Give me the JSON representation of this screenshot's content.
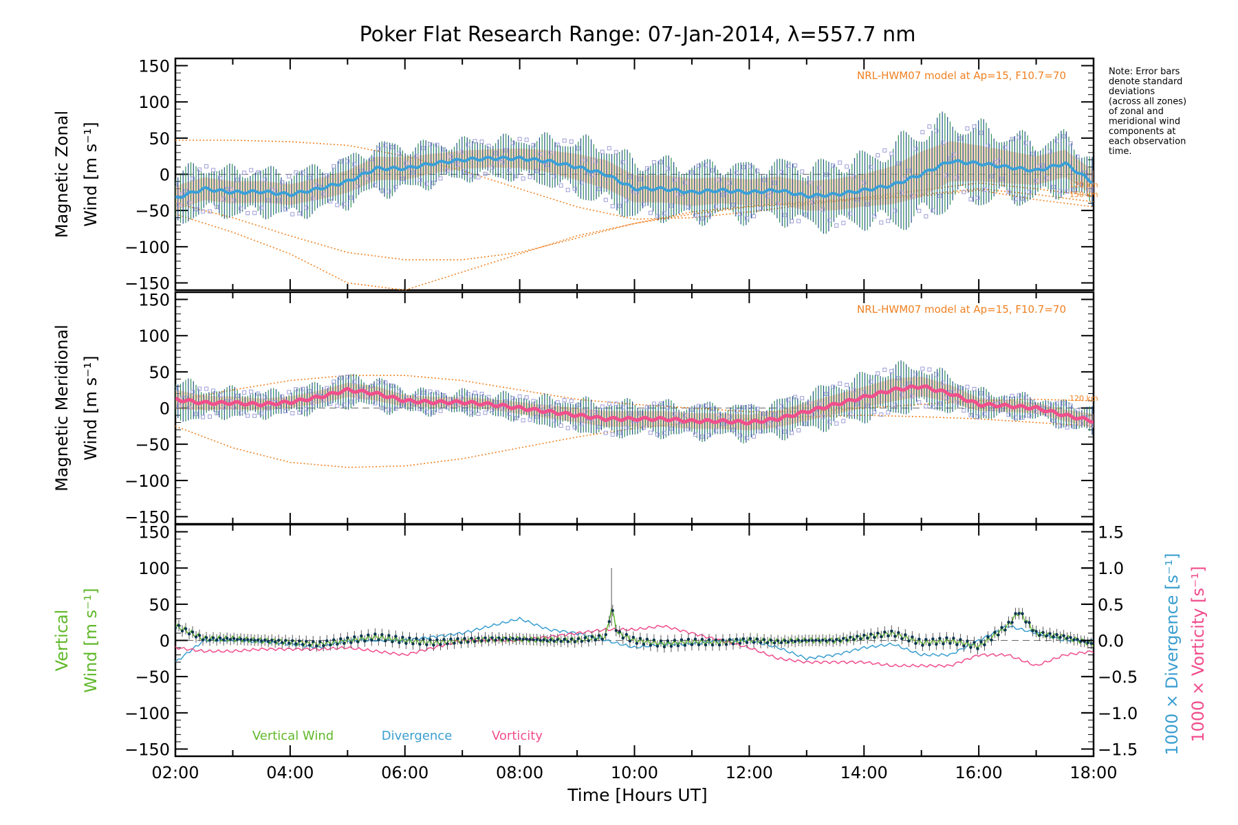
{
  "chart_data": {
    "type": "line",
    "title": "Poker Flat Research Range: 07-Jan-2014, λ=557.7 nm",
    "xlabel": "Time [Hours UT]",
    "x_ticks": [
      "02:00",
      "04:00",
      "06:00",
      "08:00",
      "10:00",
      "12:00",
      "14:00",
      "16:00",
      "18:00"
    ],
    "xlim": [
      2,
      18
    ],
    "note": [
      "Note: Error bars",
      "denote standard",
      "deviations",
      "(across all zones)",
      "of zonal and",
      "meridional wind",
      "components at",
      "each observation",
      "time."
    ],
    "colors": {
      "zonal": "#3aa0d8",
      "meridional": "#f0508c",
      "vertical": "#60b82a",
      "divergence": "#3a9ed0",
      "vorticity": "#f04c8c",
      "model": "#f08020",
      "scatter": "#9b9bd8",
      "errbar_green": "#2e8f55",
      "errbar_blue": "#1f4f8a",
      "fill": "#f7b58e"
    },
    "panels": [
      {
        "id": "zonal",
        "ylabel_line1": "Magnetic Zonal",
        "ylabel_line2": "Wind [m s⁻¹]",
        "ylim": [
          -160,
          160
        ],
        "y_ticks": [
          "150",
          "100",
          "50",
          "0",
          "−50",
          "−100",
          "−150"
        ],
        "model_label": "NRL-HWM07 model at Ap=15, F10.7=70",
        "model_alt_labels": [
          "120 km",
          "150 km"
        ],
        "series_name": "Zonal",
        "x": [
          2.0,
          2.5,
          3.0,
          3.5,
          4.0,
          4.5,
          5.0,
          5.5,
          6.0,
          6.5,
          7.0,
          7.5,
          8.0,
          8.5,
          9.0,
          9.5,
          10.0,
          10.5,
          11.0,
          11.5,
          12.0,
          12.5,
          13.0,
          13.5,
          14.0,
          14.5,
          15.0,
          15.5,
          16.0,
          16.5,
          17.0,
          17.5,
          18.0
        ],
        "values": [
          -33,
          -20,
          -25,
          -24,
          -28,
          -20,
          -10,
          8,
          8,
          15,
          20,
          22,
          22,
          18,
          10,
          0,
          -20,
          -20,
          -25,
          -22,
          -25,
          -22,
          -30,
          -28,
          -22,
          -15,
          0,
          18,
          15,
          10,
          5,
          15,
          -12
        ],
        "spread": [
          38,
          35,
          34,
          33,
          32,
          33,
          34,
          36,
          35,
          30,
          28,
          28,
          30,
          34,
          40,
          44,
          42,
          42,
          42,
          40,
          40,
          42,
          45,
          48,
          50,
          58,
          70,
          62,
          55,
          50,
          44,
          42,
          38
        ],
        "model_120km": {
          "x": [
            2,
            3,
            4,
            5,
            6,
            7,
            8,
            9,
            10,
            11,
            12,
            13,
            14,
            15,
            16,
            17,
            18
          ],
          "values": [
            47,
            47,
            45,
            40,
            25,
            5,
            -20,
            -45,
            -62,
            -60,
            -52,
            -42,
            -32,
            -22,
            -12,
            -20,
            -30
          ]
        },
        "model_150km": {
          "x": [
            2,
            3,
            4,
            5,
            6,
            7,
            8,
            9,
            10,
            11,
            12,
            13,
            14,
            15,
            16,
            17,
            18
          ],
          "values": [
            -55,
            -80,
            -110,
            -150,
            -160,
            -135,
            -110,
            -85,
            -68,
            -55,
            -45,
            -40,
            -35,
            -30,
            -22,
            -35,
            -45
          ]
        },
        "model_mid": {
          "x": [
            2,
            3,
            4,
            5,
            6,
            7,
            8,
            9,
            10,
            11,
            12,
            13,
            14,
            15,
            16,
            17,
            18
          ],
          "values": [
            -40,
            -60,
            -85,
            -108,
            -118,
            -118,
            -108,
            -88,
            -68,
            -52,
            -44,
            -38,
            -33,
            -28,
            -20,
            -28,
            -38
          ]
        }
      },
      {
        "id": "meridional",
        "ylabel_line1": "Magnetic Meridional",
        "ylabel_line2": "Wind [m s⁻¹]",
        "ylim": [
          -160,
          160
        ],
        "y_ticks": [
          "150",
          "100",
          "50",
          "0",
          "−50",
          "−100",
          "−150"
        ],
        "model_label": "NRL-HWM07 model at Ap=15, F10.7=70",
        "model_alt_labels": [
          "120 km"
        ],
        "series_name": "Meridional",
        "x": [
          2.0,
          2.5,
          3.0,
          3.5,
          4.0,
          4.5,
          5.0,
          5.5,
          6.0,
          6.5,
          7.0,
          7.5,
          8.0,
          8.5,
          9.0,
          9.5,
          10.0,
          10.5,
          11.0,
          11.5,
          12.0,
          12.5,
          13.0,
          13.5,
          14.0,
          14.5,
          15.0,
          15.5,
          16.0,
          16.5,
          17.0,
          17.5,
          18.0
        ],
        "values": [
          12,
          7,
          7,
          5,
          8,
          15,
          25,
          20,
          10,
          8,
          8,
          5,
          0,
          -5,
          -10,
          -15,
          -15,
          -15,
          -18,
          -18,
          -20,
          -15,
          -5,
          5,
          15,
          25,
          30,
          20,
          5,
          3,
          0,
          -10,
          -18
        ],
        "spread": [
          30,
          22,
          20,
          18,
          18,
          20,
          22,
          22,
          18,
          16,
          16,
          16,
          18,
          20,
          22,
          24,
          24,
          24,
          24,
          24,
          24,
          26,
          28,
          30,
          32,
          35,
          30,
          26,
          20,
          18,
          16,
          18,
          22
        ],
        "model_120km": {
          "x": [
            2,
            3,
            4,
            5,
            6,
            7,
            8,
            9,
            10,
            11,
            12,
            13,
            14,
            15,
            16,
            17,
            18
          ],
          "values": [
            10,
            25,
            38,
            45,
            45,
            38,
            25,
            12,
            5,
            0,
            -5,
            -5,
            0,
            5,
            10,
            12,
            10
          ]
        },
        "model_150km": {
          "x": [
            2,
            3,
            4,
            5,
            6,
            7,
            8,
            9,
            10,
            11,
            12,
            13,
            14,
            15,
            16,
            17,
            18
          ],
          "values": [
            -25,
            -55,
            -75,
            -82,
            -80,
            -70,
            -55,
            -40,
            -28,
            -20,
            -15,
            -12,
            -10,
            -12,
            -15,
            -20,
            -25
          ]
        }
      },
      {
        "id": "vertical",
        "ylabel_line1": "Vertical",
        "ylabel_line2": "Wind [m s⁻¹]",
        "ylim": [
          -160,
          160
        ],
        "y_ticks": [
          "150",
          "100",
          "50",
          "0",
          "−50",
          "−100",
          "−150"
        ],
        "right_ylim": [
          -1.6,
          1.6
        ],
        "right_ticks": [
          "1.5",
          "1.0",
          "0.5",
          "0.0",
          "−0.5",
          "−1.0",
          "−1.5"
        ],
        "right_label_1": "1000 × Divergence [s⁻¹]",
        "right_label_2": "1000 × Vorticity [s⁻¹]",
        "legend": [
          "Vertical Wind",
          "Divergence",
          "Vorticity"
        ],
        "vertical": {
          "x": [
            2.0,
            2.5,
            3.0,
            3.5,
            4.0,
            4.5,
            5.0,
            5.5,
            6.0,
            6.5,
            7.0,
            7.5,
            8.0,
            8.5,
            9.0,
            9.5,
            9.6,
            9.7,
            10.0,
            10.5,
            11.0,
            11.5,
            12.0,
            12.5,
            13.0,
            13.5,
            14.0,
            14.5,
            15.0,
            15.5,
            16.0,
            16.5,
            16.7,
            17.0,
            17.5,
            18.0
          ],
          "values": [
            20,
            2,
            2,
            0,
            -2,
            -5,
            0,
            5,
            0,
            -3,
            0,
            2,
            2,
            0,
            0,
            5,
            45,
            10,
            0,
            -5,
            -2,
            -3,
            0,
            -2,
            0,
            0,
            5,
            10,
            -3,
            0,
            -8,
            20,
            40,
            10,
            5,
            -5
          ]
        },
        "divergence": {
          "x": [
            2.0,
            2.5,
            3.0,
            3.5,
            4.0,
            4.5,
            5.0,
            5.5,
            6.0,
            6.5,
            7.0,
            7.5,
            8.0,
            8.5,
            9.0,
            9.5,
            10.0,
            10.5,
            11.0,
            11.5,
            12.0,
            12.5,
            13.0,
            13.5,
            14.0,
            14.5,
            15.0,
            15.5,
            16.0,
            16.5,
            17.0,
            17.5,
            18.0
          ],
          "values": [
            -0.3,
            0.0,
            0.0,
            -0.02,
            -0.05,
            -0.1,
            0.0,
            0.0,
            0.0,
            0.05,
            0.1,
            0.2,
            0.3,
            0.15,
            0.1,
            0.0,
            -0.1,
            -0.05,
            -0.05,
            0.0,
            0.0,
            -0.1,
            -0.25,
            -0.2,
            -0.1,
            -0.05,
            -0.2,
            -0.2,
            0.0,
            0.2,
            0.1,
            0.0,
            0.0
          ]
        },
        "vorticity": {
          "x": [
            2.0,
            2.5,
            3.0,
            3.5,
            4.0,
            4.5,
            5.0,
            5.5,
            6.0,
            6.5,
            7.0,
            7.5,
            8.0,
            8.5,
            9.0,
            9.5,
            10.0,
            10.5,
            11.0,
            11.5,
            12.0,
            12.5,
            13.0,
            13.5,
            14.0,
            14.5,
            15.0,
            15.5,
            16.0,
            16.5,
            17.0,
            17.5,
            18.0
          ],
          "values": [
            -0.1,
            -0.15,
            -0.15,
            -0.12,
            -0.12,
            -0.12,
            -0.1,
            -0.15,
            -0.2,
            -0.1,
            0.0,
            0.0,
            0.0,
            0.05,
            0.1,
            0.15,
            0.15,
            0.2,
            0.1,
            0.0,
            -0.1,
            -0.25,
            -0.3,
            -0.3,
            -0.3,
            -0.35,
            -0.35,
            -0.35,
            -0.2,
            -0.2,
            -0.35,
            -0.2,
            -0.15
          ]
        }
      }
    ]
  }
}
